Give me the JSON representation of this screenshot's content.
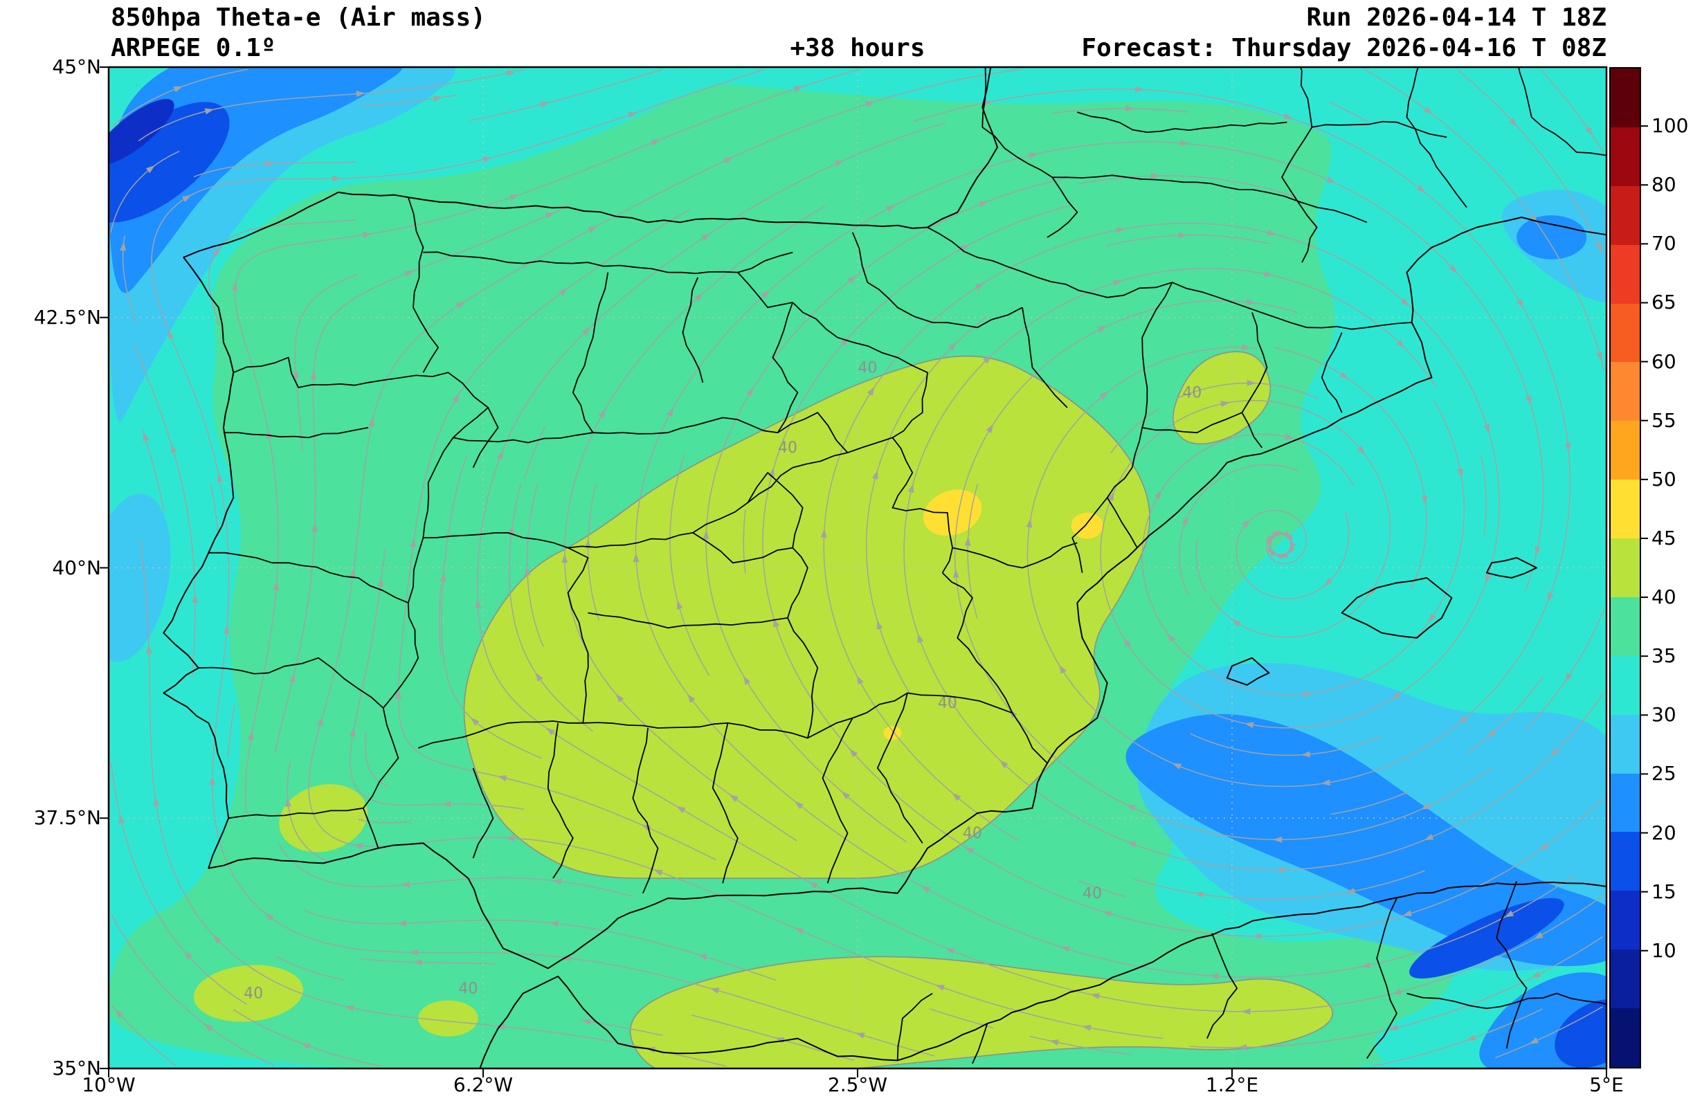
{
  "header": {
    "title": "850hpa Theta-e (Air mass)",
    "model": "ARPEGE 0.1º",
    "lead": "+38 hours",
    "run": "Run 2026-04-14 T 18Z",
    "valid": "Forecast: Thursday 2026-04-16 T 08Z"
  },
  "axes": {
    "x_tick_labels": [
      "10°W",
      "6.2°W",
      "2.5°W",
      "1.2°E",
      "5°E"
    ],
    "x_tick_lons": [
      -10,
      -6.25,
      -2.5,
      1.25,
      5
    ],
    "y_tick_labels": [
      "45°N",
      "42.5°N",
      "40°N",
      "37.5°N",
      "35°N"
    ],
    "y_tick_lats": [
      45,
      42.5,
      40,
      37.5,
      35
    ]
  },
  "colorbar": {
    "tick_labels": [
      "100",
      "80",
      "70",
      "65",
      "60",
      "55",
      "50",
      "45",
      "40",
      "35",
      "30",
      "25",
      "20",
      "15",
      "10"
    ],
    "segment_colors": [
      "#5e000a",
      "#9c0710",
      "#c81d17",
      "#ee3c24",
      "#f75c20",
      "#fd8830",
      "#ffa61e",
      "#ffe032",
      "#b9e23c",
      "#4ce19c",
      "#2ee7d2",
      "#3ec9f2",
      "#1e90ff",
      "#0b50e8",
      "#0d2fc8",
      "#0a1f9e",
      "#051272"
    ]
  },
  "contour_labels": {
    "value": "40",
    "positions_lonlat": [
      [
        -3.2,
        41.15
      ],
      [
        -2.4,
        41.95
      ],
      [
        0.85,
        41.7
      ],
      [
        -1.6,
        38.6
      ],
      [
        -1.35,
        37.3
      ],
      [
        -0.15,
        36.7
      ],
      [
        -6.4,
        35.75
      ],
      [
        -8.55,
        35.7
      ]
    ]
  },
  "style": {
    "streamline_color": "#a3a3a3",
    "boundary_color": "#000000",
    "grid_color": "#c2c2c2",
    "contour_line_color": "#8f8f8f",
    "text_color": "#000000"
  },
  "chart_data": {
    "type": "heatmap",
    "title": "850hpa Theta-e (Air mass)",
    "model": "ARPEGE 0.1°",
    "run": "2026-04-14 T 18Z",
    "forecast_valid": "Thursday 2026-04-16 T 08Z",
    "lead_hours": 38,
    "variable": "equivalent potential temperature (theta-e) at 850 hPa with wind streamlines",
    "xlabel": "longitude",
    "ylabel": "latitude",
    "x_range": [
      -10,
      5
    ],
    "y_range": [
      35,
      45
    ],
    "grid": true,
    "legend_position": "right colorbar",
    "levels": [
      10,
      15,
      20,
      25,
      30,
      35,
      40,
      45,
      50,
      55,
      60,
      65,
      70,
      80,
      100
    ],
    "field_grid": {
      "lons": [
        -10,
        -7.5,
        -5,
        -2.5,
        0,
        2.5,
        5
      ],
      "lats": [
        45,
        42.5,
        40,
        37.5,
        35
      ],
      "theta_e": [
        [
          26,
          33,
          36,
          37,
          35,
          33,
          31
        ],
        [
          21,
          34,
          37,
          38,
          37,
          35,
          32
        ],
        [
          30,
          34,
          41,
          43,
          41,
          33,
          33
        ],
        [
          33,
          36,
          41,
          43,
          35,
          27,
          30
        ],
        [
          36,
          38,
          39,
          41,
          35,
          31,
          27
        ]
      ]
    },
    "features": [
      "theta-e maximum 45-50 (yellow spots) over NE interior Spain near 1.5W 40.5N",
      "broad 40-45 (yellow-green) area over central and southeastern Spain and along 36N over North Africa",
      "theta-e minimum 15-25 (blue) in the Atlantic northwest corner",
      "20-30 (blue) band over the Mediterranean southeast of the Balearics and bottom-right corner",
      "cyclonic streamline spiral near 1.7E 40.3N",
      "region boundaries of Spain, Portugal, France and North Africa drawn in black"
    ]
  }
}
